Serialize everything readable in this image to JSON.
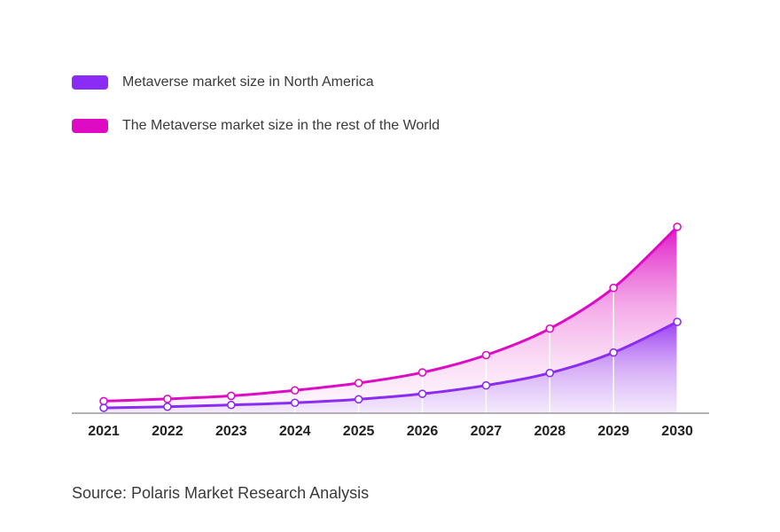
{
  "colors": {
    "north_america": "#8b2cf5",
    "rest_of_world": "#dd0cc4",
    "axis": "#9a9a9a",
    "marker_fill": "#ffffff"
  },
  "legend": {
    "items": [
      {
        "label": "Metaverse market size in North America",
        "color": "#8b2cf5"
      },
      {
        "label": "The Metaverse market size in the rest of the World",
        "color": "#dd0cc4"
      }
    ]
  },
  "source": "Source: Polaris Market Research Analysis",
  "chart_data": {
    "type": "area",
    "title": "",
    "xlabel": "",
    "ylabel": "",
    "x": [
      "2021",
      "2022",
      "2023",
      "2024",
      "2025",
      "2026",
      "2027",
      "2028",
      "2029",
      "2030"
    ],
    "ylim": [
      0,
      100
    ],
    "grid": false,
    "legend_position": "top-left",
    "stacked": false,
    "series": [
      {
        "name": "The Metaverse market size in the rest of the World",
        "values": [
          6.6,
          7.8,
          9.5,
          12.5,
          16.5,
          22.3,
          31.8,
          46.3,
          68.6,
          102.0
        ]
      },
      {
        "name": "Metaverse market size in North America",
        "values": [
          2.9,
          3.5,
          4.5,
          5.7,
          7.6,
          10.6,
          15.2,
          22.0,
          33.2,
          50.0
        ]
      }
    ]
  }
}
